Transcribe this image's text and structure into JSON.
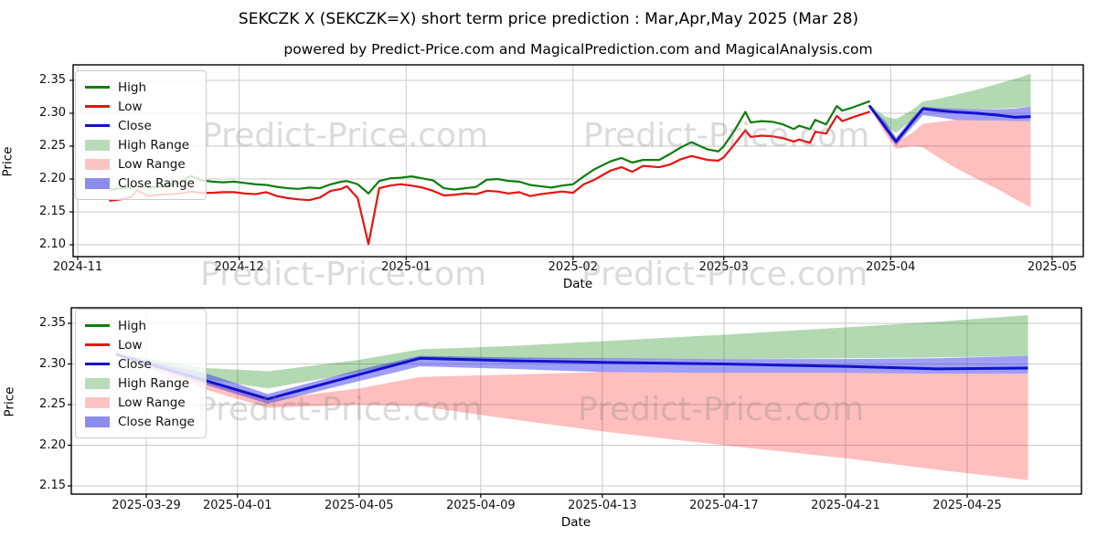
{
  "header": {
    "title": "SEKCZK X (SEKCZK=X) short term price prediction : Mar,Apr,May 2025 (Mar 28)",
    "subtitle": "powered by Predict-Price.com and MagicalPrediction.com and MagicalAnalysis.com"
  },
  "watermark": {
    "text": "Predict-Price.com"
  },
  "colors": {
    "high_line": "#0e7d0e",
    "low_line": "#e81212",
    "close_line": "#1212cc",
    "high_range_fill": "#b7dcb7",
    "low_range_fill": "#fcc3c3",
    "close_range_fill": "#8c8cee",
    "grid": "#c9c9c9",
    "spine": "#000000"
  },
  "legend": {
    "items": [
      {
        "label": "High",
        "type": "line",
        "color": "#0e7d0e"
      },
      {
        "label": "Low",
        "type": "line",
        "color": "#e81212"
      },
      {
        "label": "Close",
        "type": "line",
        "color": "#1212cc"
      },
      {
        "label": "High Range",
        "type": "fill",
        "color": "#b7dcb7"
      },
      {
        "label": "Low Range",
        "type": "fill",
        "color": "#fcc3c3"
      },
      {
        "label": "Close Range",
        "type": "fill",
        "color": "#8c8cee"
      }
    ]
  },
  "chart_data": {
    "type": "line",
    "title": "SEKCZK X (SEKCZK=X) short term price prediction : Mar,Apr,May 2025 (Mar 28)",
    "history": {
      "dates": [
        "2024-11-07",
        "2024-11-09",
        "2024-11-11",
        "2024-11-12",
        "2024-11-14",
        "2024-11-16",
        "2024-11-18",
        "2024-11-20",
        "2024-11-22",
        "2024-11-24",
        "2024-11-26",
        "2024-11-28",
        "2024-11-30",
        "2024-12-02",
        "2024-12-04",
        "2024-12-06",
        "2024-12-08",
        "2024-12-10",
        "2024-12-12",
        "2024-12-14",
        "2024-12-16",
        "2024-12-18",
        "2024-12-20",
        "2024-12-21",
        "2024-12-23",
        "2024-12-25",
        "2024-12-27",
        "2024-12-29",
        "2024-12-31",
        "2025-01-02",
        "2025-01-04",
        "2025-01-06",
        "2025-01-08",
        "2025-01-10",
        "2025-01-12",
        "2025-01-14",
        "2025-01-16",
        "2025-01-18",
        "2025-01-20",
        "2025-01-22",
        "2025-01-24",
        "2025-01-26",
        "2025-01-28",
        "2025-01-30",
        "2025-02-01",
        "2025-02-03",
        "2025-02-05",
        "2025-02-08",
        "2025-02-10",
        "2025-02-12",
        "2025-02-14",
        "2025-02-17",
        "2025-02-19",
        "2025-02-21",
        "2025-02-23",
        "2025-02-26",
        "2025-02-28",
        "2025-03-01",
        "2025-03-03",
        "2025-03-05",
        "2025-03-06",
        "2025-03-08",
        "2025-03-10",
        "2025-03-12",
        "2025-03-14",
        "2025-03-15",
        "2025-03-17",
        "2025-03-18",
        "2025-03-20",
        "2025-03-22",
        "2025-03-23",
        "2025-03-25",
        "2025-03-28"
      ],
      "high": [
        2.184,
        2.186,
        2.187,
        2.189,
        2.187,
        2.188,
        2.191,
        2.195,
        2.205,
        2.198,
        2.196,
        2.195,
        2.196,
        2.194,
        2.192,
        2.191,
        2.188,
        2.186,
        2.185,
        2.187,
        2.186,
        2.192,
        2.196,
        2.197,
        2.192,
        2.178,
        2.197,
        2.201,
        2.202,
        2.204,
        2.201,
        2.198,
        2.186,
        2.184,
        2.186,
        2.188,
        2.199,
        2.2,
        2.197,
        2.196,
        2.191,
        2.189,
        2.187,
        2.19,
        2.192,
        2.204,
        2.215,
        2.227,
        2.232,
        2.225,
        2.229,
        2.229,
        2.238,
        2.248,
        2.256,
        2.245,
        2.242,
        2.25,
        2.274,
        2.302,
        2.286,
        2.288,
        2.287,
        2.283,
        2.276,
        2.281,
        2.276,
        2.29,
        2.283,
        2.311,
        2.304,
        2.309,
        2.318
      ],
      "low": [
        2.167,
        2.169,
        2.173,
        2.183,
        2.174,
        2.176,
        2.177,
        2.178,
        2.181,
        2.179,
        2.179,
        2.18,
        2.18,
        2.178,
        2.177,
        2.18,
        2.174,
        2.171,
        2.169,
        2.168,
        2.172,
        2.182,
        2.185,
        2.189,
        2.171,
        2.101,
        2.186,
        2.19,
        2.192,
        2.19,
        2.187,
        2.182,
        2.175,
        2.176,
        2.178,
        2.177,
        2.182,
        2.181,
        2.178,
        2.18,
        2.174,
        2.177,
        2.179,
        2.181,
        2.179,
        2.192,
        2.199,
        2.213,
        2.218,
        2.211,
        2.22,
        2.218,
        2.222,
        2.23,
        2.235,
        2.229,
        2.228,
        2.233,
        2.253,
        2.274,
        2.264,
        2.266,
        2.265,
        2.262,
        2.257,
        2.26,
        2.255,
        2.272,
        2.269,
        2.296,
        2.288,
        2.294,
        2.302
      ]
    },
    "forecast": {
      "dates": [
        "2025-03-28",
        "2025-03-31",
        "2025-04-02",
        "2025-04-05",
        "2025-04-07",
        "2025-04-10",
        "2025-04-13",
        "2025-04-17",
        "2025-04-21",
        "2025-04-24",
        "2025-04-27"
      ],
      "close": [
        2.312,
        2.279,
        2.257,
        2.287,
        2.307,
        2.304,
        2.302,
        2.3,
        2.297,
        2.294,
        2.295
      ],
      "high_upper": [
        2.313,
        2.295,
        2.291,
        2.305,
        2.318,
        2.322,
        2.328,
        2.336,
        2.345,
        2.352,
        2.36
      ],
      "high_lower": [
        2.311,
        2.281,
        2.27,
        2.29,
        2.307,
        2.306,
        2.306,
        2.306,
        2.307,
        2.308,
        2.31
      ],
      "close_upper": [
        2.312,
        2.288,
        2.263,
        2.293,
        2.31,
        2.308,
        2.307,
        2.306,
        2.306,
        2.307,
        2.31
      ],
      "close_lower": [
        2.311,
        2.274,
        2.251,
        2.279,
        2.297,
        2.294,
        2.29,
        2.289,
        2.289,
        2.288,
        2.288
      ],
      "low_upper": [
        2.312,
        2.278,
        2.256,
        2.27,
        2.284,
        2.287,
        2.29,
        2.289,
        2.289,
        2.288,
        2.288
      ],
      "low_lower": [
        2.31,
        2.268,
        2.246,
        2.25,
        2.248,
        2.232,
        2.217,
        2.2,
        2.184,
        2.17,
        2.157
      ]
    },
    "top_chart": {
      "ylabel": "Price",
      "xlabel": "Date",
      "ylim": [
        2.082,
        2.374
      ],
      "yticks": [
        "2.10",
        "2.15",
        "2.20",
        "2.25",
        "2.30",
        "2.35"
      ],
      "ytick_values": [
        2.1,
        2.15,
        2.2,
        2.25,
        2.3,
        2.35
      ],
      "xticks": [
        {
          "date": "2024-11-01",
          "label": "2024-11"
        },
        {
          "date": "2024-12-01",
          "label": "2024-12"
        },
        {
          "date": "2025-01-01",
          "label": "2025-01"
        },
        {
          "date": "2025-02-01",
          "label": "2025-02"
        },
        {
          "date": "2025-03-01",
          "label": "2025-03"
        },
        {
          "date": "2025-04-01",
          "label": "2025-04"
        },
        {
          "date": "2025-05-01",
          "label": "2025-05"
        }
      ]
    },
    "bottom_chart": {
      "ylabel": "Price",
      "xlabel": "Date",
      "ylim": [
        2.141,
        2.368
      ],
      "yticks": [
        "2.15",
        "2.20",
        "2.25",
        "2.30",
        "2.35"
      ],
      "ytick_values": [
        2.15,
        2.2,
        2.25,
        2.3,
        2.35
      ],
      "xticks": [
        {
          "date": "2025-03-29",
          "label": "2025-03-29"
        },
        {
          "date": "2025-04-01",
          "label": "2025-04-01"
        },
        {
          "date": "2025-04-05",
          "label": "2025-04-05"
        },
        {
          "date": "2025-04-09",
          "label": "2025-04-09"
        },
        {
          "date": "2025-04-13",
          "label": "2025-04-13"
        },
        {
          "date": "2025-04-17",
          "label": "2025-04-17"
        },
        {
          "date": "2025-04-21",
          "label": "2025-04-21"
        },
        {
          "date": "2025-04-25",
          "label": "2025-04-25"
        }
      ]
    }
  }
}
